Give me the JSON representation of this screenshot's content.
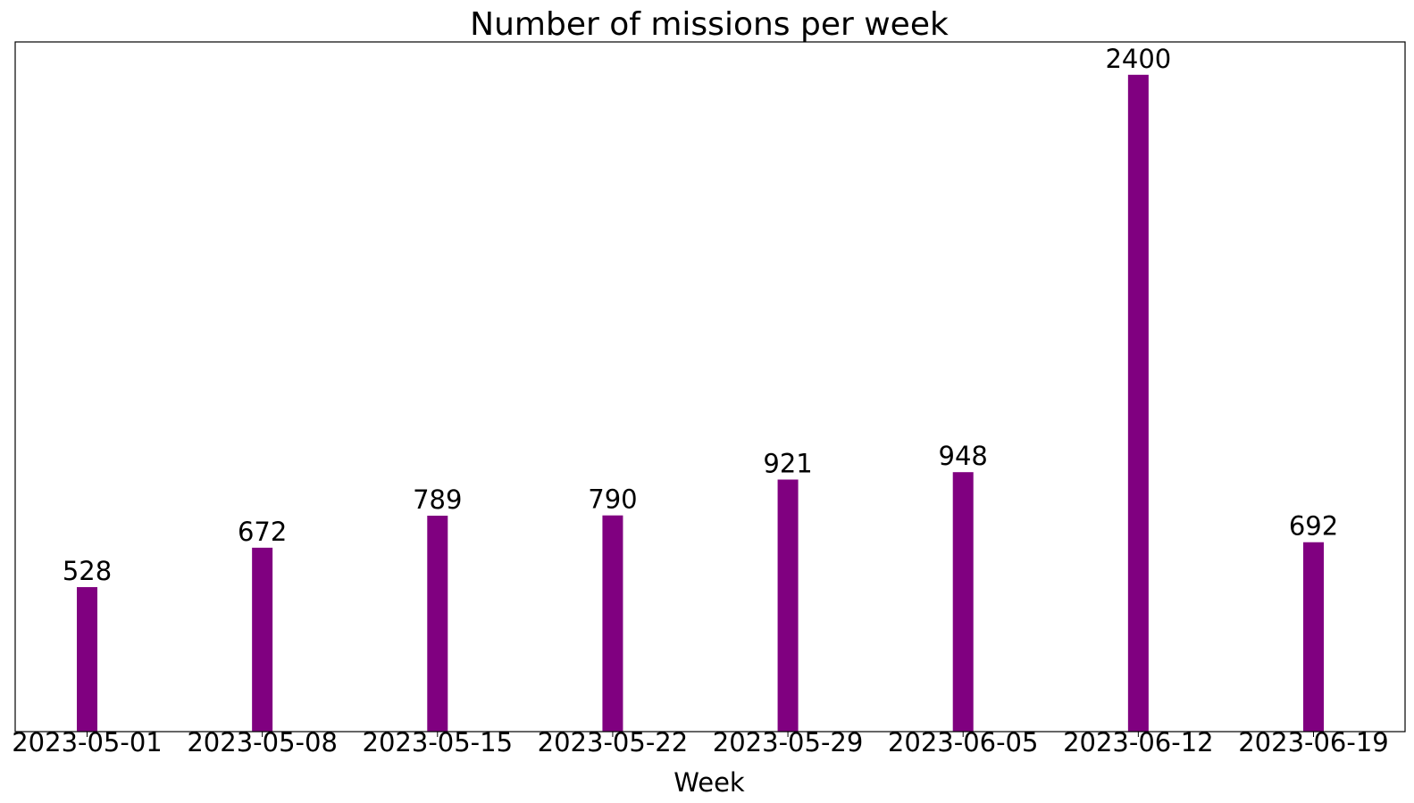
{
  "chart_data": {
    "type": "bar",
    "title": "Number of missions per week",
    "xlabel": "Week",
    "ylabel": "",
    "categories": [
      "2023-05-01",
      "2023-05-08",
      "2023-05-15",
      "2023-05-22",
      "2023-05-29",
      "2023-06-05",
      "2023-06-12",
      "2023-06-19"
    ],
    "values": [
      528,
      672,
      789,
      790,
      921,
      948,
      2400,
      692
    ],
    "ylim": [
      0,
      2520
    ],
    "bar_color": "#800080",
    "grid": false,
    "legend": "none",
    "data_labels": true
  }
}
